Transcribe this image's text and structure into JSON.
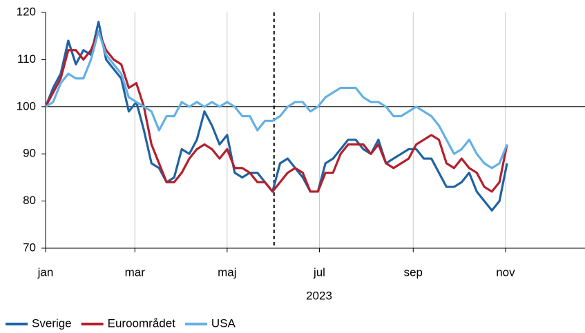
{
  "chart_data": {
    "type": "line",
    "x_label": "2023",
    "x": [
      0,
      5,
      10,
      15,
      20,
      25,
      30,
      35,
      40,
      45,
      50,
      55,
      60,
      65,
      70,
      75,
      80,
      85,
      90,
      95,
      100,
      105,
      110,
      115,
      120,
      125,
      130,
      135,
      140,
      145,
      150,
      155,
      160,
      165,
      170,
      175,
      180,
      185,
      190,
      195,
      200,
      205,
      210,
      215,
      220,
      225,
      230,
      235,
      240,
      245,
      250,
      255,
      260,
      265,
      270,
      275,
      280,
      285,
      290,
      295,
      300,
      305
    ],
    "series": [
      {
        "name": "Sverige",
        "color": "#1f63a2",
        "values": [
          100,
          104,
          107,
          114,
          109,
          112,
          111,
          118,
          110,
          108,
          106,
          99,
          101,
          95,
          88,
          87,
          84,
          85,
          91,
          90,
          93,
          99,
          96,
          92,
          94,
          86,
          85,
          86,
          86,
          84,
          82,
          88,
          89,
          87,
          85,
          82,
          82,
          88,
          89,
          91,
          93,
          93,
          91,
          90,
          93,
          88,
          89,
          90,
          91,
          91,
          89,
          89,
          86,
          83,
          83,
          84,
          86,
          82,
          80,
          78,
          80,
          88
        ]
      },
      {
        "name": "Euroområdet",
        "color": "#b41f2d",
        "values": [
          100,
          103,
          106,
          112,
          112,
          110,
          112,
          116,
          112,
          110,
          109,
          104,
          105,
          100,
          92,
          88,
          84,
          84,
          86,
          89,
          91,
          92,
          91,
          89,
          91,
          87,
          87,
          86,
          84,
          84,
          82,
          84,
          86,
          87,
          86,
          82,
          82,
          86,
          86,
          90,
          92,
          92,
          92,
          90,
          92,
          88,
          87,
          88,
          89,
          92,
          93,
          94,
          93,
          88,
          87,
          89,
          87,
          86,
          83,
          82,
          84,
          92
        ]
      },
      {
        "name": "USA",
        "color": "#64b0e4",
        "values": [
          100,
          101,
          105,
          107,
          106,
          106,
          110,
          116,
          111,
          109,
          107,
          102,
          101,
          100,
          99,
          95,
          98,
          98,
          101,
          100,
          101,
          100,
          101,
          100,
          101,
          100,
          98,
          98,
          95,
          97,
          97,
          98,
          100,
          101,
          101,
          99,
          100,
          102,
          103,
          104,
          104,
          104,
          102,
          101,
          101,
          100,
          98,
          98,
          99,
          100,
          99,
          98,
          96,
          93,
          90,
          91,
          93,
          90,
          88,
          87,
          88,
          92
        ]
      }
    ],
    "xlim": [
      0,
      357
    ],
    "xticks": [
      {
        "value": 0,
        "label": "jan"
      },
      {
        "value": 59,
        "label": "mar"
      },
      {
        "value": 120,
        "label": "maj"
      },
      {
        "value": 181,
        "label": "jul"
      },
      {
        "value": 243,
        "label": "sep"
      },
      {
        "value": 304,
        "label": "nov"
      }
    ],
    "ylim": [
      70,
      120
    ],
    "yticks": [
      70,
      80,
      90,
      100,
      110,
      120
    ],
    "reference_y": 100,
    "vline_x": 151,
    "grid": true,
    "legend": "bottom-left"
  }
}
